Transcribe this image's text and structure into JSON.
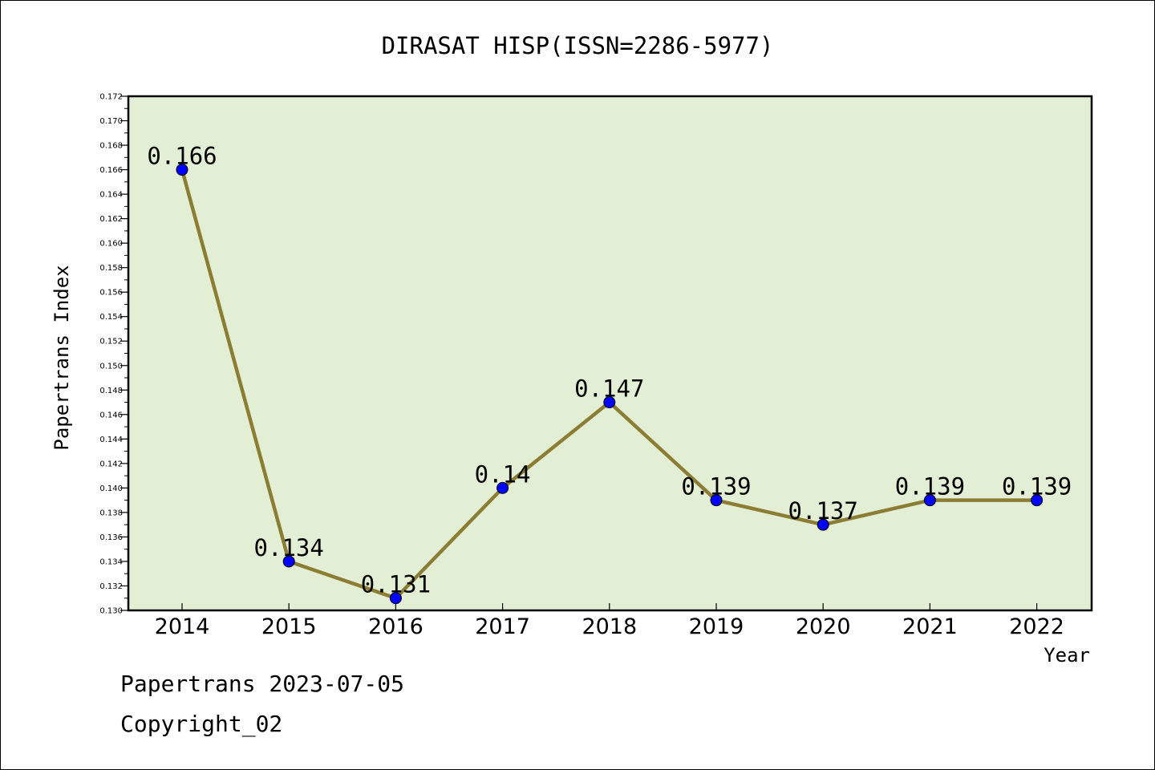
{
  "chart_data": {
    "type": "line",
    "title": "DIRASAT HISP(ISSN=2286-5977)",
    "xlabel": "Year",
    "ylabel": "Papertrans Index",
    "categories": [
      "2014",
      "2015",
      "2016",
      "2017",
      "2018",
      "2019",
      "2020",
      "2021",
      "2022"
    ],
    "values": [
      0.166,
      0.134,
      0.131,
      0.14,
      0.147,
      0.139,
      0.137,
      0.139,
      0.139
    ],
    "data_labels": [
      "0.166",
      "0.134",
      "0.131",
      "0.14",
      "0.147",
      "0.139",
      "0.137",
      "0.139",
      "0.139"
    ],
    "ylim": [
      0.13,
      0.172
    ],
    "y_ticks": [
      "0.130",
      "0.132",
      "0.134",
      "0.136",
      "0.138",
      "0.140",
      "0.142",
      "0.144",
      "0.146",
      "0.148",
      "0.150",
      "0.152",
      "0.154",
      "0.156",
      "0.158",
      "0.160",
      "0.162",
      "0.164",
      "0.166",
      "0.168",
      "0.170",
      "0.172"
    ],
    "grid": false,
    "colors": {
      "plot_background": "#e2efd5",
      "line": "#8b7d33",
      "marker": "#0000ff"
    }
  },
  "footer": {
    "line1": "Papertrans 2023-07-05",
    "line2": "Copyright_02"
  }
}
